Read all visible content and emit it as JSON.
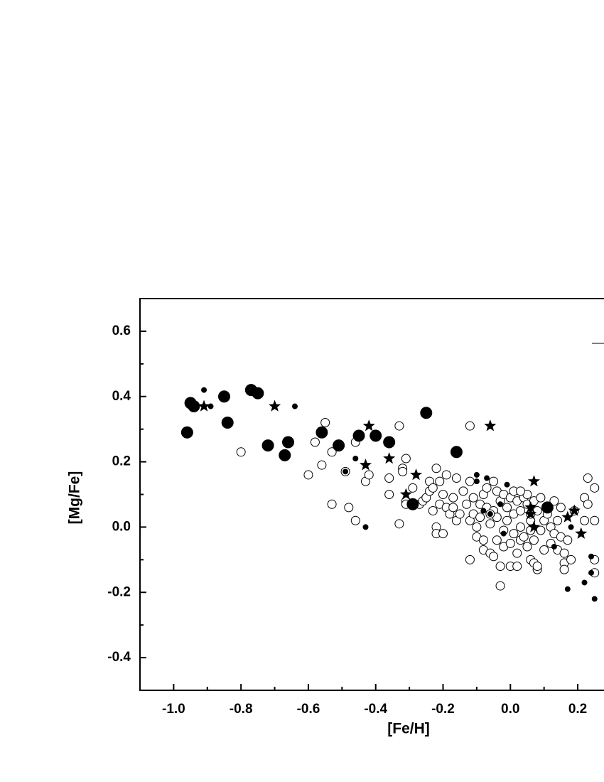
{
  "chart_data": {
    "type": "scatter",
    "xlabel": "[Fe/H]",
    "ylabel": "[Mg/Fe]",
    "xlim": [
      -1.1,
      0.278
    ],
    "ylim": [
      -0.5,
      0.7
    ],
    "xticks": [
      {
        "value": -1,
        "label": "-1.0"
      },
      -0.8,
      -0.6,
      -0.4,
      -0.2,
      {
        "value": 0,
        "label": "0.0"
      },
      0.2
    ],
    "yticks": [
      -0.4,
      -0.2,
      {
        "value": 0,
        "label": "0.0"
      },
      0.2,
      0.4,
      0.6
    ],
    "xminorticks": [
      -0.9,
      -0.7,
      -0.5,
      -0.3,
      -0.1,
      0.1
    ],
    "yminorticks": [
      -0.3,
      -0.1,
      0.1,
      0.3,
      0.5
    ],
    "series": [
      {
        "marker": "circle",
        "filled": false,
        "size": 6,
        "color": "#000000",
        "x": [
          -0.8,
          -0.6,
          -0.58,
          -0.56,
          -0.55,
          -0.53,
          -0.53,
          -0.49,
          -0.48,
          -0.46,
          -0.46,
          -0.43,
          -0.42,
          -0.36,
          -0.36,
          -0.33,
          -0.33,
          -0.32,
          -0.32,
          -0.31,
          -0.31,
          -0.31,
          -0.29,
          -0.27,
          -0.26,
          -0.25,
          -0.24,
          -0.24,
          -0.23,
          -0.23,
          -0.22,
          -0.22,
          -0.22,
          -0.21,
          -0.21,
          -0.2,
          -0.2,
          -0.19,
          -0.19,
          -0.18,
          -0.17,
          -0.17,
          -0.16,
          -0.16,
          -0.15,
          -0.14,
          -0.13,
          -0.12,
          -0.12,
          -0.12,
          -0.12,
          -0.11,
          -0.11,
          -0.1,
          -0.1,
          -0.09,
          -0.09,
          -0.08,
          -0.08,
          -0.08,
          -0.07,
          -0.07,
          -0.06,
          -0.06,
          -0.05,
          -0.05,
          -0.05,
          -0.04,
          -0.04,
          -0.04,
          -0.03,
          -0.03,
          -0.03,
          -0.02,
          -0.02,
          -0.02,
          -0.01,
          -0.01,
          0.0,
          0.0,
          0.0,
          0.01,
          0.01,
          0.01,
          0.02,
          0.02,
          0.02,
          0.03,
          0.03,
          0.03,
          0.04,
          0.04,
          0.05,
          0.05,
          0.05,
          0.06,
          0.06,
          0.06,
          0.07,
          0.07,
          0.07,
          0.08,
          0.08,
          0.08,
          0.09,
          0.09,
          0.1,
          0.1,
          0.11,
          0.12,
          0.12,
          0.13,
          0.13,
          0.14,
          0.14,
          0.15,
          0.15,
          0.16,
          0.16,
          0.16,
          0.17,
          0.18,
          0.19,
          0.22,
          0.22,
          0.23,
          0.23,
          0.25,
          0.25,
          0.25,
          0.25,
          0.03,
          -0.06,
          0.06
        ],
        "values": [
          0.23,
          0.16,
          0.26,
          0.19,
          0.32,
          0.23,
          0.07,
          0.17,
          0.06,
          0.26,
          0.02,
          0.14,
          0.16,
          0.15,
          0.1,
          0.31,
          0.01,
          0.18,
          0.17,
          0.21,
          0.08,
          0.07,
          0.12,
          0.07,
          0.08,
          0.09,
          0.14,
          0.11,
          0.12,
          0.05,
          0.18,
          0.0,
          -0.02,
          0.14,
          0.07,
          0.1,
          -0.02,
          0.16,
          0.06,
          0.04,
          0.09,
          0.06,
          0.15,
          0.02,
          0.04,
          0.11,
          0.07,
          0.31,
          0.14,
          0.02,
          -0.1,
          0.09,
          0.04,
          -0.03,
          0.0,
          0.07,
          0.03,
          0.1,
          -0.04,
          -0.07,
          0.12,
          0.06,
          0.01,
          -0.08,
          0.14,
          0.05,
          -0.09,
          0.11,
          0.03,
          -0.04,
          0.08,
          -0.12,
          -0.18,
          0.1,
          -0.01,
          -0.06,
          0.06,
          0.02,
          0.09,
          -0.05,
          -0.12,
          0.11,
          0.04,
          -0.02,
          0.08,
          -0.08,
          -0.12,
          0.05,
          0.0,
          -0.04,
          0.09,
          -0.03,
          0.1,
          0.07,
          -0.06,
          0.02,
          -0.01,
          -0.1,
          0.08,
          -0.04,
          -0.11,
          0.05,
          -0.13,
          -0.12,
          0.09,
          -0.01,
          0.02,
          -0.07,
          0.04,
          0.0,
          -0.05,
          0.08,
          -0.02,
          0.02,
          -0.07,
          0.06,
          -0.03,
          -0.08,
          -0.11,
          -0.13,
          -0.04,
          -0.1,
          0.05,
          0.09,
          0.02,
          0.15,
          0.07,
          0.12,
          0.02,
          -0.1,
          -0.14,
          0.11,
          0.04,
          0.04
        ]
      },
      {
        "marker": "circle",
        "filled": true,
        "size": 8,
        "color": "#000000",
        "x": [
          -0.96,
          -0.95,
          -0.94,
          -0.85,
          -0.84,
          -0.77,
          -0.75,
          -0.72,
          -0.67,
          -0.66,
          -0.56,
          -0.51,
          -0.45,
          -0.4,
          -0.36,
          -0.29,
          -0.25,
          -0.16,
          0.11
        ],
        "values": [
          0.29,
          0.38,
          0.37,
          0.4,
          0.32,
          0.42,
          0.41,
          0.25,
          0.22,
          0.26,
          0.29,
          0.25,
          0.28,
          0.28,
          0.26,
          0.07,
          0.35,
          0.23,
          0.06
        ]
      },
      {
        "marker": "circle",
        "filled": true,
        "size": 3.5,
        "color": "#000000",
        "x": [
          -0.91,
          -0.89,
          -0.64,
          -0.46,
          -0.43,
          -0.49,
          -0.1,
          -0.1,
          -0.07,
          -0.01,
          -0.08,
          -0.03,
          -0.02,
          -0.06,
          0.13,
          0.17,
          0.22,
          0.18,
          0.24,
          0.24,
          0.25
        ],
        "values": [
          0.42,
          0.37,
          0.37,
          0.21,
          0.0,
          0.17,
          0.16,
          0.14,
          0.15,
          0.13,
          0.05,
          0.07,
          -0.02,
          0.04,
          -0.06,
          -0.19,
          -0.17,
          0.0,
          -0.09,
          -0.14,
          -0.22
        ]
      },
      {
        "marker": "star",
        "filled": true,
        "size": 9,
        "color": "#000000",
        "x": [
          -0.91,
          -0.7,
          -0.42,
          -0.43,
          -0.36,
          -0.31,
          -0.28,
          -0.06,
          0.07,
          0.06,
          0.06,
          0.07,
          0.19,
          0.17,
          0.21
        ],
        "values": [
          0.37,
          0.37,
          0.31,
          0.19,
          0.21,
          0.1,
          0.16,
          0.31,
          0.14,
          0.06,
          0.04,
          0.0,
          0.05,
          0.03,
          -0.02
        ]
      }
    ]
  }
}
